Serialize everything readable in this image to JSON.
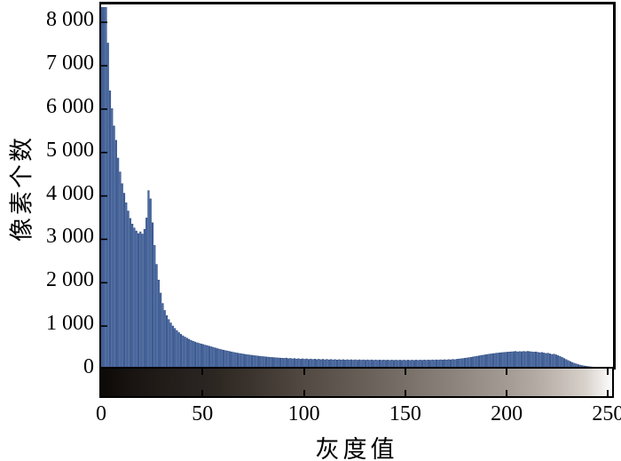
{
  "chart_data": {
    "type": "bar",
    "title": "",
    "xlabel": "灰度值",
    "ylabel": "像素个数",
    "x_axis": {
      "tick_labels": [
        "0",
        "50",
        "100",
        "150",
        "200",
        "250"
      ],
      "tick_values": [
        0,
        50,
        100,
        150,
        200,
        250
      ],
      "range": [
        0,
        252
      ]
    },
    "y_axis": {
      "tick_labels": [
        "0",
        "1 000",
        "2 000",
        "3 000",
        "4 000",
        "5 000",
        "6 000",
        "7 000",
        "8 000"
      ],
      "tick_values": [
        0,
        1000,
        2000,
        3000,
        4000,
        5000,
        6000,
        7000,
        8000
      ],
      "range": [
        0,
        8350
      ]
    },
    "grid": false,
    "legend": false,
    "bar_fill_color": "#5878b5",
    "bar_edge_color": "#2c4a80",
    "axis_color": "#000000",
    "colorbar_strip": {
      "description": "grayscale gradient from black (gray 0) to white (gray 255) under x-axis",
      "from_color": "#0c0907",
      "mid_color": "#6c645d",
      "to_color": "#fdfdfc"
    },
    "x": "gray levels 0-255, one bar per level",
    "values": [
      9000,
      8800,
      8600,
      7520,
      6420,
      6010,
      5610,
      5280,
      4870,
      4550,
      4280,
      4060,
      3840,
      3650,
      3480,
      3350,
      3260,
      3190,
      3130,
      3170,
      3120,
      3230,
      3490,
      4120,
      3930,
      3380,
      2860,
      2420,
      2060,
      1760,
      1520,
      1360,
      1240,
      1150,
      1070,
      1000,
      945,
      895,
      850,
      810,
      775,
      745,
      720,
      695,
      670,
      650,
      632,
      615,
      600,
      588,
      575,
      560,
      548,
      535,
      522,
      508,
      494,
      480,
      468,
      456,
      445,
      434,
      424,
      414,
      404,
      394,
      385,
      376,
      368,
      360,
      352,
      345,
      338,
      332,
      326,
      320,
      314,
      308,
      303,
      298,
      293,
      288,
      284,
      280,
      276,
      272,
      268,
      265,
      262,
      259,
      256,
      262,
      248,
      256,
      244,
      252,
      240,
      248,
      236,
      246,
      234,
      244,
      231,
      240,
      229,
      238,
      227,
      236,
      225,
      234,
      223,
      232,
      221,
      230,
      220,
      228,
      218,
      227,
      217,
      226,
      216,
      225,
      215,
      224,
      214,
      223,
      213,
      222,
      213,
      221,
      212,
      220,
      212,
      220,
      211,
      219,
      211,
      218,
      210,
      218,
      210,
      217,
      209,
      217,
      209,
      216,
      209,
      216,
      208,
      216,
      208,
      216,
      208,
      216,
      209,
      217,
      209,
      217,
      210,
      218,
      211,
      219,
      212,
      220,
      213,
      221,
      215,
      223,
      217,
      225,
      219,
      228,
      222,
      231,
      226,
      235,
      240,
      246,
      252,
      258,
      265,
      272,
      280,
      288,
      296,
      305,
      313,
      321,
      329,
      337,
      345,
      352,
      359,
      365,
      371,
      377,
      382,
      387,
      391,
      395,
      399,
      403,
      406,
      410,
      416,
      405,
      412,
      408,
      415,
      409,
      417,
      411,
      405,
      399,
      404,
      394,
      386,
      392,
      380,
      369,
      374,
      359,
      346,
      352,
      336,
      318,
      298,
      276,
      252,
      228,
      204,
      182,
      161,
      142,
      126,
      111,
      99,
      89,
      80,
      73,
      67,
      61,
      56,
      52,
      48,
      45,
      42,
      39,
      37,
      35,
      33,
      31,
      29,
      27,
      25,
      23
    ]
  }
}
